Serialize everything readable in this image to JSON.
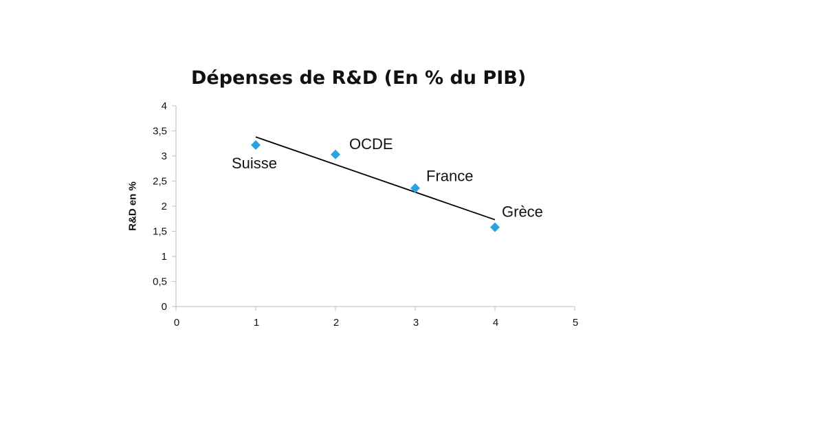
{
  "chart_data": {
    "type": "scatter",
    "title": "Dépenses de R&D (En % du PIB)",
    "xlabel": "",
    "ylabel": "R&D en %",
    "xlim": [
      0,
      5
    ],
    "ylim": [
      0,
      4
    ],
    "x_ticks": [
      "0",
      "1",
      "2",
      "3",
      "4",
      "5"
    ],
    "y_ticks": [
      "0",
      "0,5",
      "1",
      "1,5",
      "2",
      "2,5",
      "3",
      "3,5",
      "4"
    ],
    "grid": false,
    "legend": "none",
    "series": [
      {
        "points": [
          {
            "x": 1,
            "y": 3.22,
            "label": "Suisse"
          },
          {
            "x": 2,
            "y": 3.03,
            "label": "OCDE"
          },
          {
            "x": 3,
            "y": 2.36,
            "label": "France"
          },
          {
            "x": 4,
            "y": 1.58,
            "label": "Grèce"
          }
        ],
        "color": "#29a3dd"
      }
    ],
    "trendline": {
      "type": "linear",
      "from": {
        "x": 1,
        "y": 3.38
      },
      "to": {
        "x": 4,
        "y": 1.73
      },
      "color": "#000000"
    }
  }
}
